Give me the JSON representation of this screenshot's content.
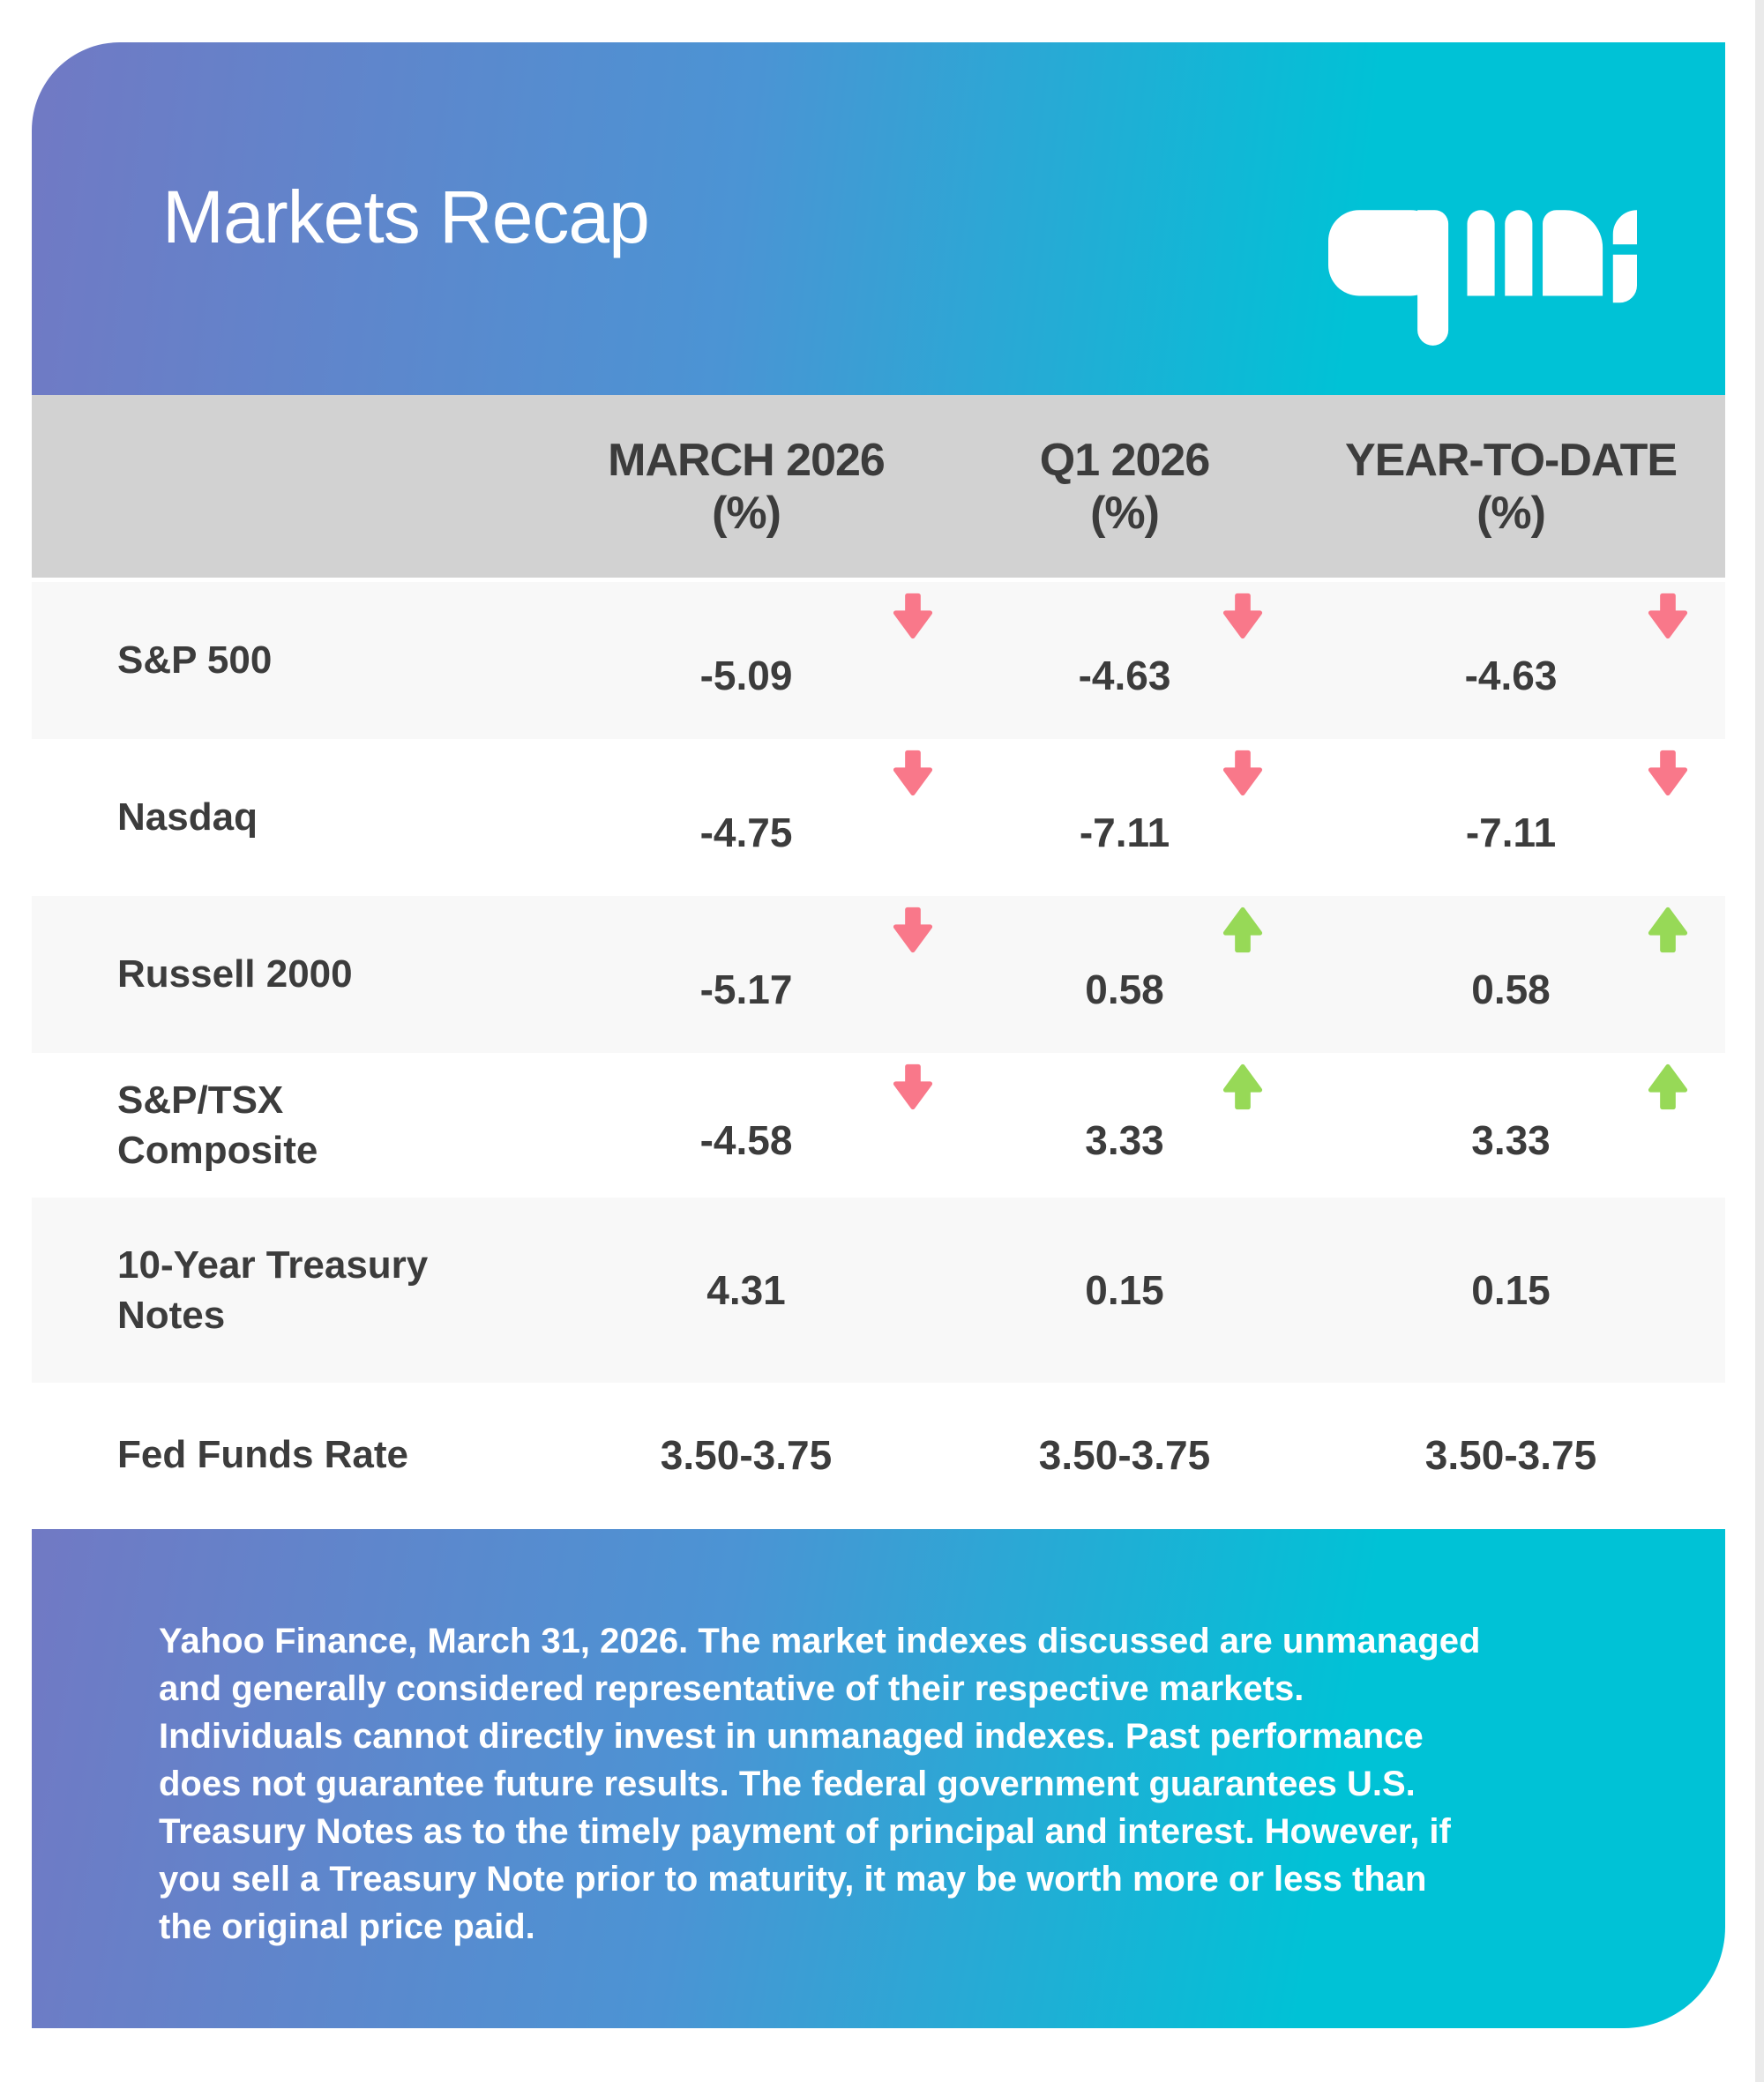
{
  "page": {
    "title": "Markets Recap",
    "logo_text": "qmi"
  },
  "colors": {
    "gradient_left": "#7179c4",
    "gradient_mid": "#4b94d4",
    "gradient_right": "#00c2d6",
    "header_row_bg": "#d2d2d2",
    "row_alt_bg": "#f8f8f8",
    "text_dark": "#3c3c3c",
    "arrow_down": "#f9788a",
    "arrow_up": "#97d957",
    "logo_color": "#ffffff"
  },
  "table": {
    "columns": [
      {
        "line1": "MARCH 2026",
        "line2": "(%)"
      },
      {
        "line1": "Q1 2026",
        "line2": "(%)"
      },
      {
        "line1": "YEAR-TO-DATE",
        "line2": "(%)"
      }
    ],
    "rows": [
      {
        "label": "S&P 500",
        "cells": [
          {
            "value": "-5.09",
            "arrow": "down"
          },
          {
            "value": "-4.63",
            "arrow": "down"
          },
          {
            "value": "-4.63",
            "arrow": "down"
          }
        ]
      },
      {
        "label": "Nasdaq",
        "cells": [
          {
            "value": "-4.75",
            "arrow": "down"
          },
          {
            "value": "-7.11",
            "arrow": "down"
          },
          {
            "value": "-7.11",
            "arrow": "down"
          }
        ]
      },
      {
        "label": "Russell 2000",
        "cells": [
          {
            "value": "-5.17",
            "arrow": "down"
          },
          {
            "value": "0.58",
            "arrow": "up"
          },
          {
            "value": "0.58",
            "arrow": "up"
          }
        ]
      },
      {
        "label": "S&P/TSX Composite",
        "cells": [
          {
            "value": "-4.58",
            "arrow": "down"
          },
          {
            "value": "3.33",
            "arrow": "up"
          },
          {
            "value": "3.33",
            "arrow": "up"
          }
        ]
      },
      {
        "label": "10-Year Treasury Notes",
        "cells": [
          {
            "value": "4.31",
            "arrow": null
          },
          {
            "value": "0.15",
            "arrow": null
          },
          {
            "value": "0.15",
            "arrow": null
          }
        ]
      },
      {
        "label": "Fed Funds Rate",
        "cells": [
          {
            "value": "3.50-3.75",
            "arrow": null
          },
          {
            "value": "3.50-3.75",
            "arrow": null
          },
          {
            "value": "3.50-3.75",
            "arrow": null
          }
        ]
      }
    ]
  },
  "footer": {
    "text": "Yahoo Finance, March 31, 2026. The market indexes discussed are unmanaged and generally considered representative of their respective markets. Individuals cannot directly invest in unmanaged indexes. Past performance does not guarantee future results. The federal government guarantees U.S. Treasury Notes as to the timely payment of principal and interest. However, if you sell a Treasury Note prior to maturity, it may be worth more or less than the original price paid."
  },
  "chart_data": {
    "type": "table",
    "title": "Markets Recap",
    "columns": [
      "MARCH 2026 (%)",
      "Q1 2026 (%)",
      "YEAR-TO-DATE (%)"
    ],
    "rows": [
      {
        "label": "S&P 500",
        "values": [
          -5.09,
          -4.63,
          -4.63
        ],
        "directions": [
          "down",
          "down",
          "down"
        ]
      },
      {
        "label": "Nasdaq",
        "values": [
          -4.75,
          -7.11,
          -7.11
        ],
        "directions": [
          "down",
          "down",
          "down"
        ]
      },
      {
        "label": "Russell 2000",
        "values": [
          -5.17,
          0.58,
          0.58
        ],
        "directions": [
          "down",
          "up",
          "up"
        ]
      },
      {
        "label": "S&P/TSX Composite",
        "values": [
          -4.58,
          3.33,
          3.33
        ],
        "directions": [
          "down",
          "up",
          "up"
        ]
      },
      {
        "label": "10-Year Treasury Notes",
        "values": [
          4.31,
          0.15,
          0.15
        ],
        "directions": [
          null,
          null,
          null
        ]
      },
      {
        "label": "Fed Funds Rate",
        "values": [
          "3.50-3.75",
          "3.50-3.75",
          "3.50-3.75"
        ],
        "directions": [
          null,
          null,
          null
        ]
      }
    ],
    "source": "Yahoo Finance, March 31, 2026"
  }
}
